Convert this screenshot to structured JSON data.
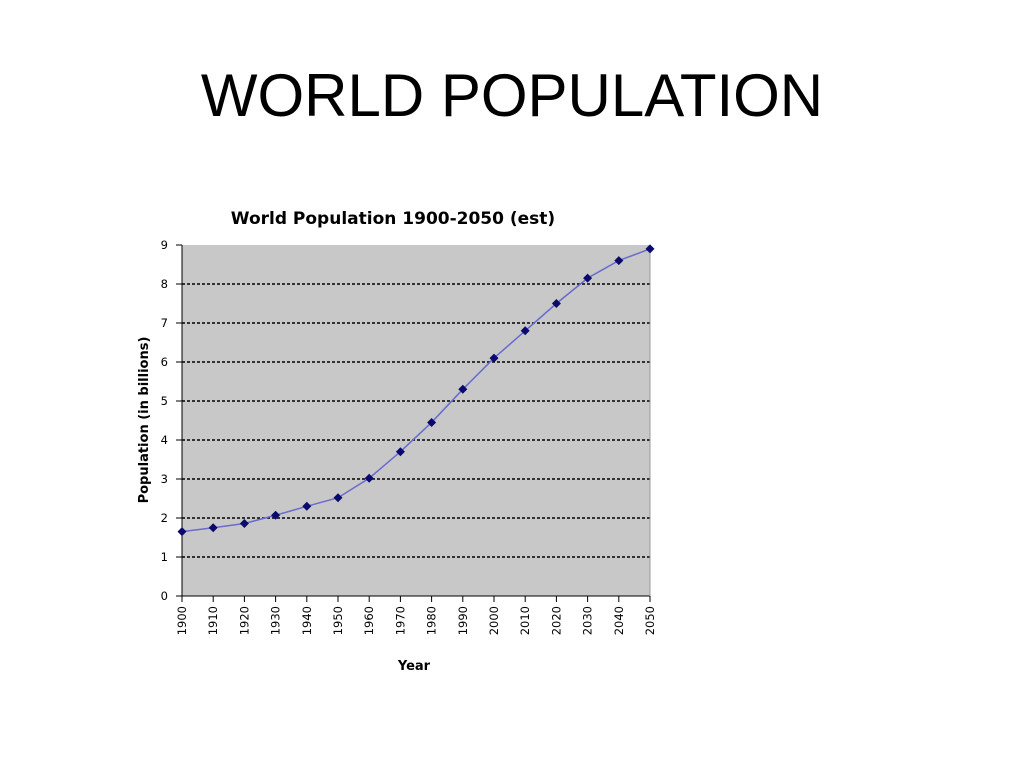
{
  "slide": {
    "title": "WORLD POPULATION"
  },
  "colors": {
    "plot_background": "#c8c8c8",
    "series_line": "#6a6ad0",
    "marker": "#0a0a6e",
    "gridline": "#000000"
  },
  "chart_data": {
    "type": "line",
    "title": "World Population 1900-2050 (est)",
    "xlabel": "Year",
    "ylabel": "Population (in billions)",
    "ylim": [
      0,
      9
    ],
    "yticks": [
      "0",
      "1",
      "2",
      "3",
      "4",
      "5",
      "6",
      "7",
      "8",
      "9"
    ],
    "categories": [
      "1900",
      "1910",
      "1920",
      "1930",
      "1940",
      "1950",
      "1960",
      "1970",
      "1980",
      "1990",
      "2000",
      "2010",
      "2020",
      "2030",
      "2040",
      "2050"
    ],
    "grid": true,
    "legend": "none",
    "series": [
      {
        "values": [
          1.65,
          1.75,
          1.86,
          2.07,
          2.3,
          2.52,
          3.02,
          3.7,
          4.45,
          5.3,
          6.1,
          6.8,
          7.5,
          8.15,
          8.6,
          8.9
        ]
      }
    ]
  }
}
